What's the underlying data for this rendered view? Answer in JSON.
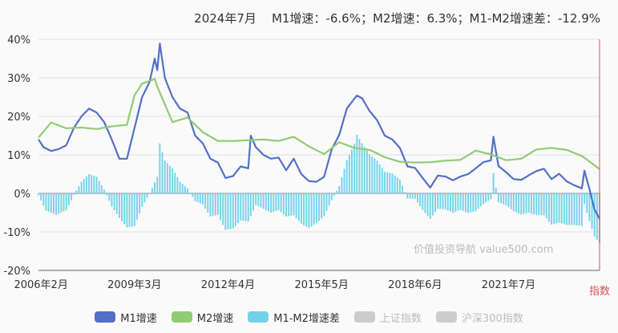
{
  "header": {
    "text": "2024年7月    M1增速：-6.6%；M2增速：6.3%；M1-M2增速差：-12.9%"
  },
  "watermark": "价值投资导航 value500.com",
  "legend": [
    {
      "label": "M1增速",
      "color": "#5470c6",
      "active": true
    },
    {
      "label": "M2增速",
      "color": "#91cc75",
      "active": true
    },
    {
      "label": "M1-M2增速差",
      "color": "#73d2ea",
      "active": true
    },
    {
      "label": "上证指数",
      "color": "#cccccc",
      "active": false
    },
    {
      "label": "沪深300指数",
      "color": "#cccccc",
      "active": false
    }
  ],
  "right_axis_label": "指数",
  "chart_data": {
    "type": "line",
    "title": "",
    "ylim": [
      -20,
      40
    ],
    "yticks": [
      "40%",
      "30%",
      "20%",
      "10%",
      "0%",
      "-10%",
      "-20%"
    ],
    "ytick_values": [
      40,
      30,
      20,
      10,
      0,
      -10,
      -20
    ],
    "xticks": [
      "2006年2月",
      "2009年3月",
      "2012年4月",
      "2015年5月",
      "2018年6月",
      "2021年7月"
    ],
    "x_start": "2006-01",
    "x_end": "2024-07",
    "grid": true,
    "series": [
      {
        "name": "M1增速",
        "type": "line",
        "color": "#5470c6",
        "points": [
          [
            "2006-01",
            14.0
          ],
          [
            "2006-03",
            12.0
          ],
          [
            "2006-06",
            11.0
          ],
          [
            "2006-09",
            11.5
          ],
          [
            "2006-12",
            12.5
          ],
          [
            "2007-03",
            17.0
          ],
          [
            "2007-06",
            20.0
          ],
          [
            "2007-09",
            22.0
          ],
          [
            "2007-12",
            21.0
          ],
          [
            "2008-03",
            18.5
          ],
          [
            "2008-06",
            14.0
          ],
          [
            "2008-09",
            9.0
          ],
          [
            "2008-12",
            9.0
          ],
          [
            "2009-03",
            17.0
          ],
          [
            "2009-06",
            25.0
          ],
          [
            "2009-09",
            29.0
          ],
          [
            "2009-11",
            35.0
          ],
          [
            "2009-12",
            32.0
          ],
          [
            "2010-01",
            38.9
          ],
          [
            "2010-03",
            30.0
          ],
          [
            "2010-06",
            25.0
          ],
          [
            "2010-09",
            22.0
          ],
          [
            "2010-12",
            21.0
          ],
          [
            "2011-03",
            15.0
          ],
          [
            "2011-06",
            13.0
          ],
          [
            "2011-09",
            9.0
          ],
          [
            "2011-12",
            8.0
          ],
          [
            "2012-03",
            4.0
          ],
          [
            "2012-06",
            4.5
          ],
          [
            "2012-09",
            7.0
          ],
          [
            "2012-12",
            6.5
          ],
          [
            "2013-01",
            15.0
          ],
          [
            "2013-03",
            12.0
          ],
          [
            "2013-06",
            10.0
          ],
          [
            "2013-09",
            9.0
          ],
          [
            "2013-12",
            9.3
          ],
          [
            "2014-03",
            6.0
          ],
          [
            "2014-06",
            9.0
          ],
          [
            "2014-09",
            5.0
          ],
          [
            "2014-12",
            3.2
          ],
          [
            "2015-03",
            3.0
          ],
          [
            "2015-06",
            4.3
          ],
          [
            "2015-09",
            11.4
          ],
          [
            "2015-12",
            15.2
          ],
          [
            "2016-03",
            22.0
          ],
          [
            "2016-06",
            24.6
          ],
          [
            "2016-07",
            25.4
          ],
          [
            "2016-09",
            24.7
          ],
          [
            "2016-12",
            21.4
          ],
          [
            "2017-03",
            19.0
          ],
          [
            "2017-06",
            15.0
          ],
          [
            "2017-09",
            14.0
          ],
          [
            "2017-12",
            11.8
          ],
          [
            "2018-03",
            7.0
          ],
          [
            "2018-06",
            6.6
          ],
          [
            "2018-09",
            4.0
          ],
          [
            "2018-12",
            1.5
          ],
          [
            "2019-03",
            4.6
          ],
          [
            "2019-06",
            4.4
          ],
          [
            "2019-09",
            3.4
          ],
          [
            "2019-12",
            4.4
          ],
          [
            "2020-03",
            5.0
          ],
          [
            "2020-06",
            6.5
          ],
          [
            "2020-09",
            8.1
          ],
          [
            "2020-12",
            8.6
          ],
          [
            "2021-01",
            14.7
          ],
          [
            "2021-03",
            7.1
          ],
          [
            "2021-06",
            5.5
          ],
          [
            "2021-09",
            3.7
          ],
          [
            "2021-12",
            3.5
          ],
          [
            "2022-03",
            4.7
          ],
          [
            "2022-06",
            5.8
          ],
          [
            "2022-09",
            6.4
          ],
          [
            "2022-12",
            3.7
          ],
          [
            "2023-03",
            5.1
          ],
          [
            "2023-06",
            3.1
          ],
          [
            "2023-09",
            2.1
          ],
          [
            "2023-12",
            1.3
          ],
          [
            "2024-01",
            5.9
          ],
          [
            "2024-03",
            1.1
          ],
          [
            "2024-05",
            -4.2
          ],
          [
            "2024-07",
            -6.6
          ]
        ]
      },
      {
        "name": "M2增速",
        "type": "line",
        "color": "#91cc75",
        "points": [
          [
            "2006-01",
            14.5
          ],
          [
            "2006-06",
            18.4
          ],
          [
            "2006-12",
            16.9
          ],
          [
            "2007-06",
            17.1
          ],
          [
            "2007-12",
            16.7
          ],
          [
            "2008-06",
            17.4
          ],
          [
            "2008-12",
            17.8
          ],
          [
            "2009-03",
            25.5
          ],
          [
            "2009-06",
            28.5
          ],
          [
            "2009-11",
            29.7
          ],
          [
            "2009-12",
            27.7
          ],
          [
            "2010-06",
            18.5
          ],
          [
            "2010-12",
            19.7
          ],
          [
            "2011-06",
            15.9
          ],
          [
            "2011-12",
            13.6
          ],
          [
            "2012-06",
            13.6
          ],
          [
            "2012-12",
            13.8
          ],
          [
            "2013-06",
            14.0
          ],
          [
            "2013-12",
            13.6
          ],
          [
            "2014-06",
            14.7
          ],
          [
            "2014-12",
            12.2
          ],
          [
            "2015-06",
            10.2
          ],
          [
            "2015-12",
            13.3
          ],
          [
            "2016-06",
            11.8
          ],
          [
            "2016-12",
            11.3
          ],
          [
            "2017-06",
            9.4
          ],
          [
            "2017-12",
            8.2
          ],
          [
            "2018-06",
            8.0
          ],
          [
            "2018-12",
            8.1
          ],
          [
            "2019-06",
            8.5
          ],
          [
            "2019-12",
            8.7
          ],
          [
            "2020-06",
            11.1
          ],
          [
            "2020-12",
            10.1
          ],
          [
            "2021-06",
            8.6
          ],
          [
            "2021-12",
            9.0
          ],
          [
            "2022-06",
            11.4
          ],
          [
            "2022-12",
            11.8
          ],
          [
            "2023-06",
            11.3
          ],
          [
            "2023-12",
            9.7
          ],
          [
            "2024-03",
            8.3
          ],
          [
            "2024-07",
            6.3
          ]
        ]
      },
      {
        "name": "M1-M2增速差",
        "type": "bar",
        "color": "#73d2ea",
        "points": [
          [
            "2006-01",
            -0.5
          ],
          [
            "2006-04",
            -4.5
          ],
          [
            "2006-08",
            -5.6
          ],
          [
            "2006-12",
            -4.4
          ],
          [
            "2007-03",
            -0.4
          ],
          [
            "2007-06",
            3.0
          ],
          [
            "2007-09",
            5.0
          ],
          [
            "2007-12",
            4.3
          ],
          [
            "2008-03",
            1.0
          ],
          [
            "2008-06",
            -3.4
          ],
          [
            "2008-09",
            -6.4
          ],
          [
            "2008-12",
            -8.8
          ],
          [
            "2009-03",
            -8.5
          ],
          [
            "2009-06",
            -3.5
          ],
          [
            "2009-09",
            0.0
          ],
          [
            "2009-12",
            4.3
          ],
          [
            "2010-01",
            13.0
          ],
          [
            "2010-03",
            8.5
          ],
          [
            "2010-06",
            6.5
          ],
          [
            "2010-09",
            3.0
          ],
          [
            "2010-12",
            1.3
          ],
          [
            "2011-03",
            -2.0
          ],
          [
            "2011-06",
            -2.9
          ],
          [
            "2011-09",
            -6.0
          ],
          [
            "2011-12",
            -5.6
          ],
          [
            "2012-03",
            -9.5
          ],
          [
            "2012-06",
            -9.1
          ],
          [
            "2012-09",
            -7.0
          ],
          [
            "2012-12",
            -7.3
          ],
          [
            "2013-03",
            -3.0
          ],
          [
            "2013-06",
            -4.0
          ],
          [
            "2013-09",
            -5.0
          ],
          [
            "2013-12",
            -4.3
          ],
          [
            "2014-03",
            -6.0
          ],
          [
            "2014-06",
            -5.7
          ],
          [
            "2014-09",
            -7.9
          ],
          [
            "2014-12",
            -9.0
          ],
          [
            "2015-03",
            -7.7
          ],
          [
            "2015-06",
            -5.9
          ],
          [
            "2015-09",
            -1.8
          ],
          [
            "2015-12",
            1.9
          ],
          [
            "2016-03",
            8.6
          ],
          [
            "2016-06",
            12.8
          ],
          [
            "2016-07",
            15.2
          ],
          [
            "2016-09",
            13.0
          ],
          [
            "2016-12",
            10.1
          ],
          [
            "2017-03",
            8.5
          ],
          [
            "2017-06",
            5.6
          ],
          [
            "2017-09",
            5.2
          ],
          [
            "2017-12",
            3.6
          ],
          [
            "2018-03",
            -1.3
          ],
          [
            "2018-06",
            -1.4
          ],
          [
            "2018-09",
            -4.3
          ],
          [
            "2018-12",
            -6.6
          ],
          [
            "2019-03",
            -4.0
          ],
          [
            "2019-06",
            -4.1
          ],
          [
            "2019-09",
            -5.0
          ],
          [
            "2019-12",
            -4.3
          ],
          [
            "2020-03",
            -5.1
          ],
          [
            "2020-06",
            -4.6
          ],
          [
            "2020-09",
            -2.8
          ],
          [
            "2020-12",
            -1.5
          ],
          [
            "2021-01",
            5.3
          ],
          [
            "2021-03",
            -2.3
          ],
          [
            "2021-06",
            -3.1
          ],
          [
            "2021-09",
            -4.6
          ],
          [
            "2021-12",
            -5.5
          ],
          [
            "2022-03",
            -5.0
          ],
          [
            "2022-06",
            -5.6
          ],
          [
            "2022-09",
            -5.7
          ],
          [
            "2022-12",
            -8.1
          ],
          [
            "2023-03",
            -7.6
          ],
          [
            "2023-06",
            -8.2
          ],
          [
            "2023-09",
            -8.2
          ],
          [
            "2023-12",
            -8.4
          ],
          [
            "2024-01",
            -2.8
          ],
          [
            "2024-03",
            -7.2
          ],
          [
            "2024-05",
            -11.2
          ],
          [
            "2024-07",
            -12.9
          ]
        ]
      }
    ]
  }
}
